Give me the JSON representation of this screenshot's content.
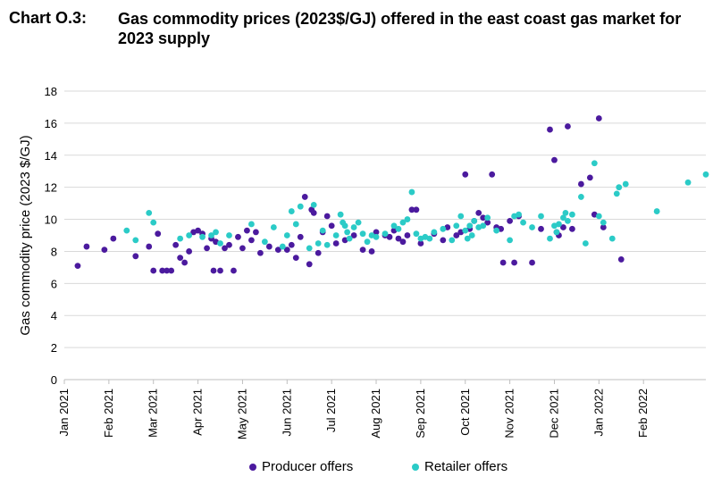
{
  "chart_label": "Chart O.3:",
  "chart_title": "Gas commodity prices (2023$/GJ) offered in the east coast gas market for 2023 supply",
  "chart_data": {
    "type": "scatter",
    "title": "Gas commodity prices (2023$/GJ) offered in the east coast gas market for 2023 supply",
    "xlabel": "",
    "ylabel": "Gas commodity price (2023 $/GJ)",
    "ylim": [
      0,
      18
    ],
    "yticks": [
      0,
      2,
      4,
      6,
      8,
      10,
      12,
      14,
      16,
      18
    ],
    "xlim": [
      0,
      14.4
    ],
    "x_unit": "months since Jan 2021",
    "xticks": [
      "Jan 2021",
      "Feb 2021",
      "Mar 2021",
      "Apr 2021",
      "May 2021",
      "Jun 2021",
      "Jul 2021",
      "Aug 2021",
      "Sep 2021",
      "Oct 2021",
      "Nov 2021",
      "Dec 2021",
      "Jan 2022",
      "Feb 2022"
    ],
    "grid": true,
    "legend_position": "bottom",
    "series": [
      {
        "name": "Producer offers",
        "color": "#4B1A9E",
        "points": [
          [
            0.3,
            7.1
          ],
          [
            0.5,
            8.3
          ],
          [
            0.9,
            8.1
          ],
          [
            1.1,
            8.8
          ],
          [
            1.6,
            7.7
          ],
          [
            1.9,
            8.3
          ],
          [
            2.0,
            6.8
          ],
          [
            2.1,
            9.1
          ],
          [
            2.2,
            6.8
          ],
          [
            2.3,
            6.8
          ],
          [
            2.4,
            6.8
          ],
          [
            2.5,
            8.4
          ],
          [
            2.6,
            7.6
          ],
          [
            2.7,
            7.3
          ],
          [
            2.8,
            8.0
          ],
          [
            2.9,
            9.2
          ],
          [
            3.0,
            9.3
          ],
          [
            3.1,
            9.1
          ],
          [
            3.2,
            8.2
          ],
          [
            3.3,
            8.8
          ],
          [
            3.35,
            6.8
          ],
          [
            3.4,
            8.6
          ],
          [
            3.5,
            6.8
          ],
          [
            3.6,
            8.2
          ],
          [
            3.7,
            8.4
          ],
          [
            3.8,
            6.8
          ],
          [
            3.9,
            8.9
          ],
          [
            4.0,
            8.2
          ],
          [
            4.1,
            9.3
          ],
          [
            4.2,
            8.7
          ],
          [
            4.3,
            9.2
          ],
          [
            4.4,
            7.9
          ],
          [
            4.6,
            8.3
          ],
          [
            4.8,
            8.1
          ],
          [
            5.0,
            8.1
          ],
          [
            5.1,
            8.4
          ],
          [
            5.2,
            7.6
          ],
          [
            5.3,
            8.9
          ],
          [
            5.4,
            11.4
          ],
          [
            5.5,
            7.2
          ],
          [
            5.55,
            10.6
          ],
          [
            5.6,
            10.4
          ],
          [
            5.7,
            7.9
          ],
          [
            5.8,
            9.2
          ],
          [
            5.9,
            10.2
          ],
          [
            6.0,
            9.6
          ],
          [
            6.1,
            8.5
          ],
          [
            6.3,
            8.7
          ],
          [
            6.5,
            9.0
          ],
          [
            6.7,
            8.1
          ],
          [
            6.9,
            8.0
          ],
          [
            7.0,
            9.2
          ],
          [
            7.2,
            9.0
          ],
          [
            7.3,
            8.9
          ],
          [
            7.4,
            9.3
          ],
          [
            7.5,
            8.8
          ],
          [
            7.6,
            8.6
          ],
          [
            7.7,
            9.0
          ],
          [
            7.8,
            10.6
          ],
          [
            7.9,
            10.6
          ],
          [
            8.0,
            8.5
          ],
          [
            8.3,
            9.1
          ],
          [
            8.5,
            8.7
          ],
          [
            8.6,
            9.5
          ],
          [
            8.8,
            9.0
          ],
          [
            8.9,
            9.2
          ],
          [
            9.0,
            12.8
          ],
          [
            9.1,
            9.4
          ],
          [
            9.2,
            9.9
          ],
          [
            9.3,
            10.4
          ],
          [
            9.4,
            10.1
          ],
          [
            9.5,
            9.8
          ],
          [
            9.6,
            12.8
          ],
          [
            9.7,
            9.5
          ],
          [
            9.8,
            9.4
          ],
          [
            9.85,
            7.3
          ],
          [
            10.0,
            9.9
          ],
          [
            10.1,
            7.3
          ],
          [
            10.2,
            10.2
          ],
          [
            10.5,
            7.3
          ],
          [
            10.7,
            9.4
          ],
          [
            10.9,
            15.6
          ],
          [
            11.0,
            13.7
          ],
          [
            11.05,
            9.2
          ],
          [
            11.1,
            9.0
          ],
          [
            11.2,
            9.5
          ],
          [
            11.3,
            15.8
          ],
          [
            11.4,
            9.4
          ],
          [
            11.6,
            12.2
          ],
          [
            11.8,
            12.6
          ],
          [
            11.9,
            10.3
          ],
          [
            12.0,
            16.3
          ],
          [
            12.1,
            9.5
          ],
          [
            12.5,
            7.5
          ]
        ]
      },
      {
        "name": "Retailer offers",
        "color": "#2BCBC7",
        "points": [
          [
            1.4,
            9.3
          ],
          [
            1.6,
            8.7
          ],
          [
            1.9,
            10.4
          ],
          [
            2.0,
            9.8
          ],
          [
            2.6,
            8.8
          ],
          [
            2.8,
            9.0
          ],
          [
            3.1,
            8.9
          ],
          [
            3.3,
            9.0
          ],
          [
            3.4,
            9.2
          ],
          [
            3.5,
            8.5
          ],
          [
            3.7,
            9.0
          ],
          [
            4.2,
            9.7
          ],
          [
            4.5,
            8.6
          ],
          [
            4.7,
            9.5
          ],
          [
            4.9,
            8.3
          ],
          [
            5.0,
            9.0
          ],
          [
            5.1,
            10.5
          ],
          [
            5.2,
            9.7
          ],
          [
            5.3,
            10.8
          ],
          [
            5.5,
            8.2
          ],
          [
            5.6,
            10.9
          ],
          [
            5.7,
            8.5
          ],
          [
            5.8,
            9.3
          ],
          [
            5.9,
            8.4
          ],
          [
            6.1,
            9.0
          ],
          [
            6.2,
            10.3
          ],
          [
            6.25,
            9.8
          ],
          [
            6.3,
            9.6
          ],
          [
            6.35,
            9.2
          ],
          [
            6.4,
            8.8
          ],
          [
            6.5,
            9.5
          ],
          [
            6.6,
            9.8
          ],
          [
            6.7,
            9.1
          ],
          [
            6.8,
            8.6
          ],
          [
            6.9,
            9.0
          ],
          [
            7.0,
            8.9
          ],
          [
            7.2,
            9.1
          ],
          [
            7.4,
            9.6
          ],
          [
            7.5,
            9.4
          ],
          [
            7.6,
            9.8
          ],
          [
            7.7,
            10.0
          ],
          [
            7.8,
            11.7
          ],
          [
            7.9,
            9.1
          ],
          [
            8.0,
            8.8
          ],
          [
            8.1,
            8.9
          ],
          [
            8.2,
            8.8
          ],
          [
            8.3,
            9.2
          ],
          [
            8.5,
            9.4
          ],
          [
            8.7,
            8.7
          ],
          [
            8.8,
            9.6
          ],
          [
            8.9,
            10.2
          ],
          [
            9.0,
            9.3
          ],
          [
            9.05,
            8.8
          ],
          [
            9.1,
            9.6
          ],
          [
            9.15,
            9.0
          ],
          [
            9.2,
            9.9
          ],
          [
            9.3,
            9.5
          ],
          [
            9.4,
            9.6
          ],
          [
            9.5,
            10.1
          ],
          [
            9.7,
            9.3
          ],
          [
            10.0,
            8.7
          ],
          [
            10.1,
            10.2
          ],
          [
            10.2,
            10.3
          ],
          [
            10.3,
            9.8
          ],
          [
            10.5,
            9.5
          ],
          [
            10.7,
            10.2
          ],
          [
            10.9,
            8.8
          ],
          [
            11.0,
            9.6
          ],
          [
            11.05,
            9.2
          ],
          [
            11.1,
            9.7
          ],
          [
            11.2,
            10.1
          ],
          [
            11.25,
            10.4
          ],
          [
            11.3,
            9.9
          ],
          [
            11.4,
            10.3
          ],
          [
            11.6,
            11.4
          ],
          [
            11.7,
            8.5
          ],
          [
            11.9,
            13.5
          ],
          [
            12.0,
            10.2
          ],
          [
            12.1,
            9.8
          ],
          [
            12.3,
            8.8
          ],
          [
            12.4,
            11.6
          ],
          [
            12.45,
            12.0
          ],
          [
            12.6,
            12.2
          ],
          [
            13.3,
            10.5
          ],
          [
            14.0,
            12.3
          ],
          [
            14.4,
            12.8
          ]
        ]
      }
    ]
  }
}
